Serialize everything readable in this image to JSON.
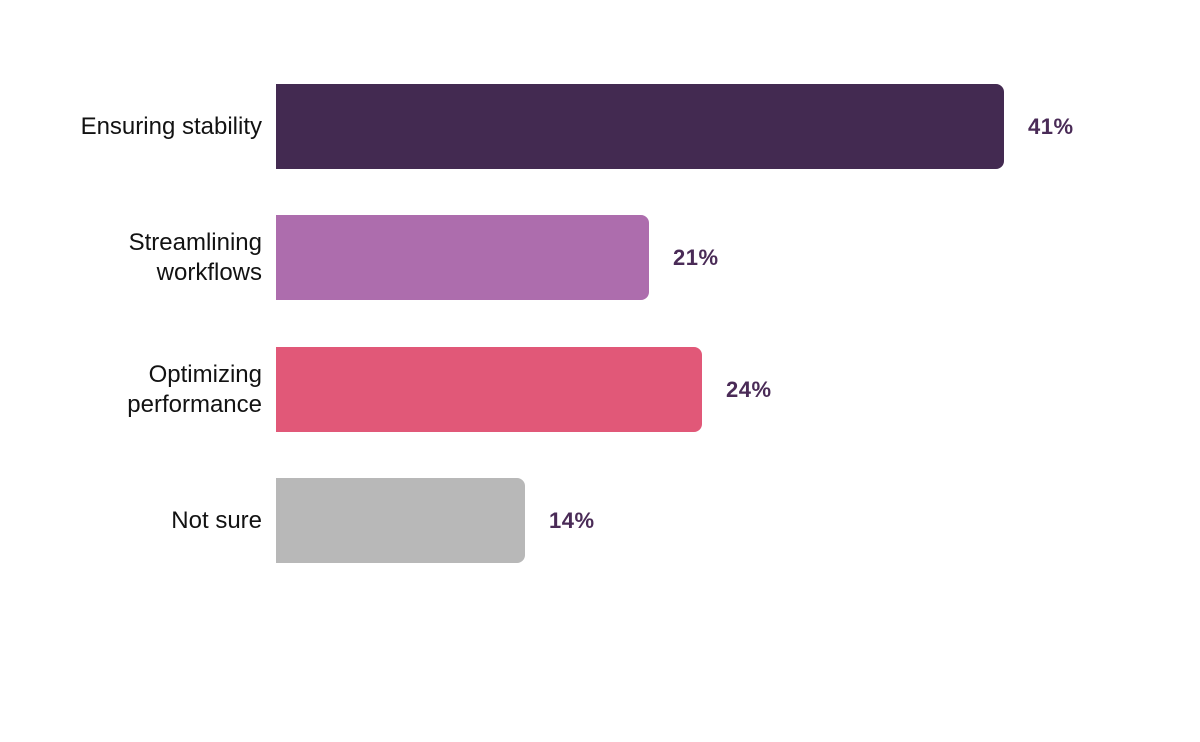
{
  "chart_data": {
    "type": "bar",
    "orientation": "horizontal",
    "title": "",
    "xlabel": "",
    "ylabel": "",
    "grid": false,
    "legend": false,
    "xlim": [
      0,
      41
    ],
    "categories": [
      "Ensuring stability",
      "Streamlining workflows",
      "Optimizing performance",
      "Not sure"
    ],
    "category_label_lines": [
      [
        "Ensuring stability"
      ],
      [
        "Streamlining",
        "workflows"
      ],
      [
        "Optimizing",
        "performance"
      ],
      [
        "Not sure"
      ]
    ],
    "values": [
      41,
      21,
      24,
      14
    ],
    "value_labels": [
      "41%",
      "21%",
      "24%",
      "14%"
    ],
    "bar_colors": [
      "#432a51",
      "#ad6dad",
      "#e15878",
      "#b8b8b8"
    ],
    "value_label_color": "#4a2b57",
    "category_label_color": "#121212",
    "background_color": "#ffffff"
  }
}
